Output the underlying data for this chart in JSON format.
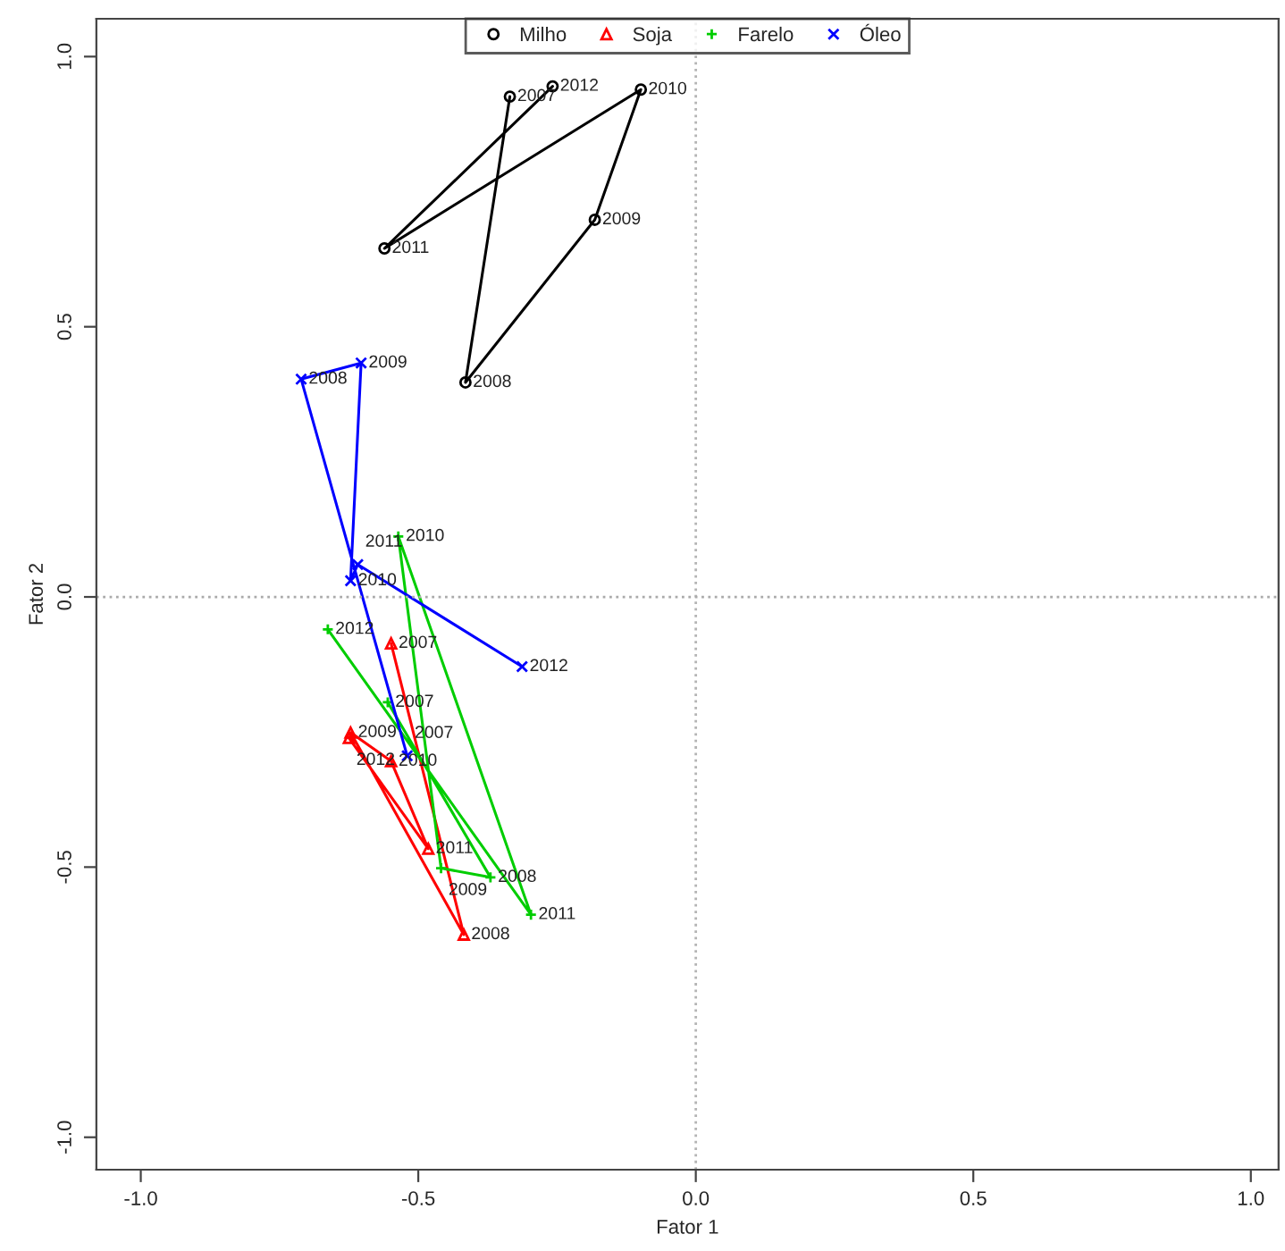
{
  "chart_data": {
    "type": "line",
    "xlabel": "Fator 1",
    "ylabel": "Fator 2",
    "xlim": [
      -1.08,
      1.05
    ],
    "ylim": [
      -1.06,
      1.07
    ],
    "xticks": [
      {
        "value": -1.0,
        "label": "-1.0"
      },
      -0.5,
      {
        "value": 0,
        "label": "0.0"
      },
      0.5,
      {
        "value": 1,
        "label": "1.0"
      }
    ],
    "yticks": [
      {
        "value": -1.0,
        "label": "-1.0"
      },
      -0.5,
      {
        "value": 0,
        "label": "0.0"
      },
      0.5,
      {
        "value": 1,
        "label": "1.0"
      }
    ],
    "grid": false,
    "legend": "top",
    "line_style": "solid",
    "ref_lines": [
      {
        "axis": "x",
        "value": 0,
        "line_style": "dotted",
        "color": "#b4b4b4"
      },
      {
        "axis": "y",
        "value": 0,
        "line_style": "dotted",
        "color": "#aaaaaa"
      }
    ],
    "series": [
      {
        "name": "Milho",
        "color": "#000000",
        "marker": "circle",
        "x": [
          -0.335,
          -0.415,
          -0.182,
          -0.099,
          -0.561,
          -0.258
        ],
        "values": [
          0.926,
          0.397,
          0.698,
          0.939,
          0.645,
          0.945
        ]
      },
      {
        "name": "Soja",
        "color": "#ff0000",
        "marker": "triangle",
        "x": [
          -0.549,
          -0.418,
          -0.622,
          -0.549,
          -0.482,
          -0.625
        ],
        "values": [
          -0.086,
          -0.625,
          -0.251,
          -0.304,
          -0.466,
          -0.261
        ]
      },
      {
        "name": "Farelo",
        "color": "#00cd00",
        "marker": "plus",
        "x": [
          -0.555,
          -0.37,
          -0.459,
          -0.536,
          -0.297,
          -0.663
        ],
        "values": [
          -0.195,
          -0.519,
          -0.502,
          0.112,
          -0.588,
          -0.06
        ]
      },
      {
        "name": "Óleo",
        "color": "#0000ff",
        "marker": "cross",
        "x": [
          -0.52,
          -0.711,
          -0.603,
          -0.622,
          -0.609,
          -0.313
        ],
        "values": [
          -0.294,
          0.403,
          0.433,
          0.03,
          0.06,
          -0.129
        ]
      }
    ],
    "annotations": [
      {
        "text": "2007",
        "x": -0.335,
        "y": 0.926
      },
      {
        "text": "2008",
        "x": -0.415,
        "y": 0.397
      },
      {
        "text": "2009",
        "x": -0.182,
        "y": 0.698
      },
      {
        "text": "2010",
        "x": -0.099,
        "y": 0.939
      },
      {
        "text": "2011",
        "x": -0.561,
        "y": 0.645
      },
      {
        "text": "2012",
        "x": -0.258,
        "y": 0.945
      },
      {
        "text": "2007",
        "x": -0.549,
        "y": -0.086
      },
      {
        "text": "2008",
        "x": -0.418,
        "y": -0.625
      },
      {
        "text": "2009",
        "x": -0.622,
        "y": -0.251
      },
      {
        "text": "2010",
        "x": -0.549,
        "y": -0.304
      },
      {
        "text": "2011",
        "x": -0.482,
        "y": -0.466
      },
      {
        "text": "2012",
        "x": -0.625,
        "y": -0.261
      },
      {
        "text": "2007",
        "x": -0.555,
        "y": -0.195
      },
      {
        "text": "2008",
        "x": -0.37,
        "y": -0.519
      },
      {
        "text": "2009",
        "x": -0.459,
        "y": -0.502
      },
      {
        "text": "2010",
        "x": -0.536,
        "y": 0.112
      },
      {
        "text": "2011",
        "x": -0.297,
        "y": -0.588
      },
      {
        "text": "2012",
        "x": -0.663,
        "y": -0.06
      },
      {
        "text": "2007",
        "x": -0.52,
        "y": -0.294
      },
      {
        "text": "2008",
        "x": -0.711,
        "y": 0.403
      },
      {
        "text": "2009",
        "x": -0.603,
        "y": 0.433
      },
      {
        "text": "2010",
        "x": -0.622,
        "y": 0.03
      },
      {
        "text": "2011",
        "x": -0.609,
        "y": 0.06
      },
      {
        "text": "2012",
        "x": -0.313,
        "y": -0.129
      }
    ]
  }
}
